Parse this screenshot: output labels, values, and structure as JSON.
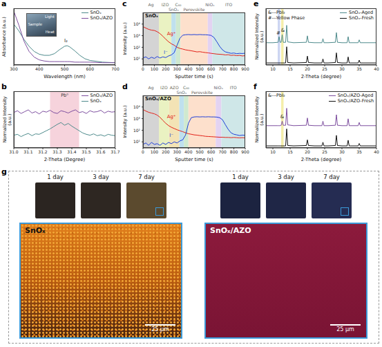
{
  "chart_data": [
    {
      "panel": "a",
      "type": "line",
      "x_label": "Wavelength (nm)",
      "y_label": "Absorbance (a.u.)",
      "x": [
        300,
        320,
        340,
        360,
        380,
        400,
        420,
        440,
        460,
        480,
        500,
        510,
        520,
        540,
        560,
        580,
        600,
        650,
        700
      ],
      "series": [
        {
          "name": "SnOₓ",
          "color": "#4e8b8c",
          "values": [
            0.72,
            0.6,
            0.45,
            0.33,
            0.24,
            0.19,
            0.17,
            0.17,
            0.2,
            0.27,
            0.33,
            0.34,
            0.32,
            0.25,
            0.17,
            0.11,
            0.08,
            0.05,
            0.04
          ]
        },
        {
          "name": "SnOₓ/AZO",
          "color": "#7d4e9f",
          "values": [
            0.95,
            0.7,
            0.42,
            0.24,
            0.14,
            0.09,
            0.07,
            0.06,
            0.06,
            0.06,
            0.06,
            0.06,
            0.06,
            0.05,
            0.05,
            0.05,
            0.05,
            0.04,
            0.04
          ]
        }
      ],
      "xlim": [
        300,
        700
      ],
      "xticks": [
        300,
        400,
        500,
        600,
        700
      ],
      "ylim": [
        0,
        1
      ],
      "tick_labels": "x",
      "legend": "upper right",
      "annotations": [
        {
          "text": "I₂",
          "x": 505,
          "y": 0.43
        }
      ],
      "inset_labels": [
        "Light",
        "Sample",
        "Heat"
      ]
    },
    {
      "panel": "b",
      "type": "line",
      "x_label": "2-Theta (Degree)",
      "y_label": "Normalized Intensity (a.u.)",
      "x": [
        31,
        31.025,
        31.05,
        31.075,
        31.1,
        31.125,
        31.15,
        31.175,
        31.2,
        31.225,
        31.25,
        31.275,
        31.3,
        31.325,
        31.35,
        31.375,
        31.4,
        31.425,
        31.45,
        31.475,
        31.5,
        31.525,
        31.55,
        31.575,
        31.6,
        31.625,
        31.65,
        31.675,
        31.7
      ],
      "series": [
        {
          "name": "SnOₓ/AZO",
          "color": "#7d4e9f",
          "values": [
            0.78,
            0.82,
            0.76,
            0.8,
            0.84,
            0.77,
            0.8,
            0.75,
            0.81,
            0.79,
            0.83,
            0.78,
            0.76,
            0.82,
            0.8,
            0.77,
            0.81,
            0.84,
            0.78,
            0.8,
            0.76,
            0.82,
            0.79,
            0.8,
            0.83,
            0.77,
            0.81,
            0.79,
            0.8
          ]
        },
        {
          "name": "SnOₓ",
          "color": "#4e8b8c",
          "values": [
            0.28,
            0.3,
            0.25,
            0.29,
            0.32,
            0.27,
            0.31,
            0.3,
            0.34,
            0.38,
            0.42,
            0.47,
            0.52,
            0.56,
            0.5,
            0.54,
            0.48,
            0.43,
            0.38,
            0.33,
            0.3,
            0.28,
            0.31,
            0.27,
            0.29,
            0.26,
            0.3,
            0.28,
            0.27
          ]
        }
      ],
      "xlim": [
        31,
        31.7
      ],
      "xticks": [
        {
          "value": 31,
          "label": "31.0"
        },
        31.1,
        31.2,
        31.3,
        31.4,
        31.5,
        31.6,
        31.7
      ],
      "ylim": [
        0,
        1.25
      ],
      "tick_labels": "x",
      "legend": "upper right",
      "highlights": [
        {
          "from": 31.25,
          "to": 31.45,
          "color": "#f6d3dc",
          "label": "Pb⁰"
        }
      ]
    },
    {
      "panel": "c",
      "type": "line",
      "log": "y",
      "x_label": "Sputter time (s)",
      "y_label": "Intensity (a.u.)",
      "sample_label": "SnOₓ",
      "x": [
        0,
        25,
        50,
        75,
        100,
        125,
        150,
        175,
        200,
        225,
        250,
        275,
        300,
        325,
        350,
        375,
        400,
        425,
        450,
        475,
        500,
        525,
        550,
        575,
        600,
        625,
        650,
        675,
        700,
        725,
        750,
        775,
        800,
        825,
        850,
        875,
        900
      ],
      "series": [
        {
          "name": "Ag⁺",
          "color": "#e32119",
          "label_at": [
            250,
            1500
          ],
          "values": [
            6000,
            4500,
            3500,
            3000,
            2800,
            2200,
            1500,
            900,
            500,
            300,
            200,
            150,
            100,
            80,
            70,
            60,
            55,
            50,
            45,
            40,
            42,
            38,
            35,
            33,
            30,
            28,
            26,
            25,
            24,
            22,
            23,
            20,
            21,
            19,
            20,
            18,
            19
          ]
        },
        {
          "name": "I⁻",
          "color": "#1e3fd9",
          "label_at": [
            200,
            40
          ],
          "values": [
            12,
            15,
            10,
            14,
            11,
            16,
            12,
            15,
            13,
            18,
            22,
            35,
            150,
            600,
            1100,
            1200,
            1250,
            1200,
            1250,
            1200,
            1250,
            1200,
            1200,
            1150,
            1050,
            700,
            300,
            120,
            60,
            40,
            35,
            30,
            32,
            28,
            30,
            29,
            31
          ]
        }
      ],
      "xlim": [
        0,
        900
      ],
      "xticks": [
        0,
        100,
        200,
        300,
        400,
        500,
        600,
        700,
        800,
        900
      ],
      "ylim": [
        3,
        100000
      ],
      "yticks": [
        {
          "value": 10,
          "label": "10¹"
        },
        {
          "value": 100,
          "label": "10²"
        },
        {
          "value": 1000,
          "label": "10³"
        },
        {
          "value": 10000,
          "label": "10⁴"
        }
      ],
      "layers": [
        {
          "name": "Ag",
          "from": 0,
          "to": 140,
          "color": "#d4d4d4"
        },
        {
          "name": "IZO",
          "from": 140,
          "to": 250,
          "color": "#eaf2c2"
        },
        {
          "name": "SnOₓ",
          "from": 250,
          "to": 290,
          "color": "#bfe0ee"
        },
        {
          "name": "C₆₀",
          "from": 290,
          "to": 330,
          "color": "#cfe9cf"
        },
        {
          "name": "Perovskite",
          "from": 330,
          "to": 570,
          "color": "#fde0cc"
        },
        {
          "name": "NiOₓ",
          "from": 570,
          "to": 610,
          "color": "#e3d3f2"
        },
        {
          "name": "ITO",
          "from": 610,
          "to": 900,
          "color": "#cfe7e8"
        }
      ]
    },
    {
      "panel": "d",
      "type": "line",
      "log": "y",
      "x_label": "Sputter time (s)",
      "y_label": "Intensity (a.u.)",
      "sample_label": "SnOₓ/AZO",
      "x": [
        0,
        25,
        50,
        75,
        100,
        125,
        150,
        175,
        200,
        225,
        250,
        275,
        300,
        325,
        350,
        375,
        400,
        425,
        450,
        475,
        500,
        525,
        550,
        575,
        600,
        625,
        650,
        675,
        700,
        725,
        750,
        775,
        800,
        825,
        850,
        875,
        900
      ],
      "series": [
        {
          "name": "Ag⁺",
          "color": "#e32119",
          "label_at": [
            250,
            1500
          ],
          "values": [
            6000,
            4500,
            3500,
            3000,
            2600,
            2000,
            1300,
            700,
            400,
            250,
            180,
            140,
            110,
            90,
            75,
            60,
            50,
            45,
            40,
            38,
            35,
            33,
            30,
            29,
            28,
            27,
            26,
            25,
            25,
            24,
            24,
            23,
            24,
            23,
            22,
            23,
            22
          ]
        },
        {
          "name": "I⁻",
          "color": "#1e3fd9",
          "label_at": [
            250,
            40
          ],
          "values": [
            6,
            8,
            5,
            9,
            6,
            7,
            5,
            8,
            6,
            9,
            7,
            10,
            8,
            12,
            15,
            40,
            400,
            1200,
            1400,
            1450,
            1400,
            1450,
            1400,
            1450,
            1400,
            1400,
            1350,
            1200,
            800,
            300,
            120,
            60,
            45,
            40,
            35,
            38,
            36
          ]
        }
      ],
      "xlim": [
        0,
        900
      ],
      "xticks": [
        0,
        100,
        200,
        300,
        400,
        500,
        600,
        700,
        800,
        900
      ],
      "ylim": [
        3,
        100000
      ],
      "yticks": [
        {
          "value": 10,
          "label": "10¹"
        },
        {
          "value": 100,
          "label": "10²"
        },
        {
          "value": 1000,
          "label": "10³"
        },
        {
          "value": 10000,
          "label": "10⁴"
        }
      ],
      "layers": [
        {
          "name": "Ag",
          "from": 0,
          "to": 140,
          "color": "#d4d4d4"
        },
        {
          "name": "IZO",
          "from": 140,
          "to": 230,
          "color": "#eaf2c2"
        },
        {
          "name": "AZO",
          "from": 230,
          "to": 320,
          "color": "#f3e3b5"
        },
        {
          "name": "SnOₓ",
          "from": 320,
          "to": 360,
          "color": "#bfe0ee"
        },
        {
          "name": "C₆₀",
          "from": 360,
          "to": 400,
          "color": "#cfe9cf"
        },
        {
          "name": "Perovskite",
          "from": 400,
          "to": 640,
          "color": "#fde0cc"
        },
        {
          "name": "NiOₓ",
          "from": 640,
          "to": 690,
          "color": "#e3d3f2"
        },
        {
          "name": "ITO",
          "from": 690,
          "to": 900,
          "color": "#cfe7e8"
        }
      ]
    },
    {
      "panel": "e",
      "type": "line",
      "x_label": "2-Theta (degree)",
      "y_label": "Normalized Intensity (a.u.)",
      "x": [
        8,
        10,
        11.5,
        11.8,
        12.1,
        12.4,
        12.7,
        13,
        13.7,
        14,
        14.3,
        16,
        19.7,
        20,
        20.3,
        22,
        24.2,
        24.5,
        24.8,
        26,
        28.1,
        28.4,
        28.7,
        30,
        31.5,
        31.8,
        32.1,
        33,
        34.7,
        35,
        35.3,
        37,
        40
      ],
      "series": [
        {
          "name": "SnOₓ-Aged",
          "color": "#4e8b8c",
          "values": [
            0.55,
            0.55,
            0.56,
            0.7,
            0.56,
            0.56,
            0.75,
            0.56,
            0.56,
            0.98,
            0.57,
            0.55,
            0.56,
            0.72,
            0.56,
            0.55,
            0.55,
            0.65,
            0.55,
            0.55,
            0.56,
            0.8,
            0.56,
            0.55,
            0.55,
            0.7,
            0.55,
            0.55,
            0.55,
            0.62,
            0.55,
            0.55,
            0.55
          ]
        },
        {
          "name": "SnOₓ-Fresh",
          "color": "#111111",
          "values": [
            0.05,
            0.05,
            0.05,
            0.05,
            0.05,
            0.05,
            0.05,
            0.05,
            0.05,
            0.45,
            0.06,
            0.05,
            0.06,
            0.22,
            0.06,
            0.05,
            0.05,
            0.15,
            0.05,
            0.05,
            0.06,
            0.3,
            0.06,
            0.05,
            0.05,
            0.2,
            0.05,
            0.05,
            0.05,
            0.12,
            0.05,
            0.05,
            0.05
          ]
        }
      ],
      "xlim": [
        8,
        40
      ],
      "xticks": [
        10,
        15,
        20,
        25,
        30,
        35,
        40
      ],
      "ylim": [
        0,
        1.4
      ],
      "tick_labels": "x",
      "legend": "upper right",
      "notes": [
        "&---PbI₂",
        "#---Yellow Phase"
      ],
      "highlights": [
        {
          "from": 11.4,
          "to": 12.1,
          "color": "#cdd6f2"
        },
        {
          "from": 12.4,
          "to": 13.1,
          "color": "#f5eeaa"
        }
      ],
      "annotations": [
        {
          "text": "#",
          "x": 11.6,
          "y": 0.8
        },
        {
          "text": "&",
          "x": 12.9,
          "y": 0.86
        }
      ]
    },
    {
      "panel": "f",
      "type": "line",
      "x_label": "2-Theta (degree)",
      "y_label": "Normalized Intensity (a.u.)",
      "x": [
        8,
        10,
        11.5,
        11.8,
        12.1,
        12.4,
        12.7,
        13,
        13.7,
        14,
        14.3,
        16,
        19.7,
        20,
        20.3,
        22,
        24.2,
        24.5,
        24.8,
        26,
        28.1,
        28.4,
        28.7,
        30,
        31.5,
        31.8,
        32.1,
        33,
        34.7,
        35,
        35.3,
        37,
        40
      ],
      "series": [
        {
          "name": "SnOₓ/AZO-Aged",
          "color": "#7d4e9f",
          "values": [
            0.55,
            0.55,
            0.55,
            0.55,
            0.55,
            0.56,
            0.66,
            0.56,
            0.56,
            0.98,
            0.57,
            0.55,
            0.56,
            0.74,
            0.56,
            0.55,
            0.55,
            0.66,
            0.55,
            0.55,
            0.56,
            0.82,
            0.56,
            0.55,
            0.55,
            0.72,
            0.55,
            0.55,
            0.55,
            0.63,
            0.55,
            0.55,
            0.55
          ]
        },
        {
          "name": "SnOₓ/AZO-Fresh",
          "color": "#111111",
          "values": [
            0.05,
            0.05,
            0.05,
            0.05,
            0.05,
            0.05,
            0.05,
            0.05,
            0.05,
            0.47,
            0.06,
            0.05,
            0.06,
            0.2,
            0.06,
            0.05,
            0.05,
            0.14,
            0.05,
            0.05,
            0.06,
            0.31,
            0.06,
            0.05,
            0.05,
            0.19,
            0.05,
            0.05,
            0.05,
            0.11,
            0.05,
            0.05,
            0.05
          ]
        }
      ],
      "xlim": [
        8,
        40
      ],
      "xticks": [
        10,
        15,
        20,
        25,
        30,
        35,
        40
      ],
      "ylim": [
        0,
        1.4
      ],
      "tick_labels": "x",
      "legend": "upper right",
      "notes": [
        "&---PbI₂"
      ],
      "highlights": [
        {
          "from": 12.4,
          "to": 13.1,
          "color": "#f5eeaa"
        }
      ],
      "annotations": [
        {
          "text": "&",
          "x": 12.7,
          "y": 0.77
        }
      ]
    }
  ],
  "photo_panel": {
    "panel": "g",
    "groups": [
      {
        "sample": "SnOₓ",
        "days": [
          "1 day",
          "3 day",
          "7 day"
        ],
        "scale_bar": "25 μm"
      },
      {
        "sample": "SnOₓ/AZO",
        "days": [
          "1 day",
          "3 day",
          "7 day"
        ],
        "scale_bar": "25 μm"
      }
    ]
  }
}
